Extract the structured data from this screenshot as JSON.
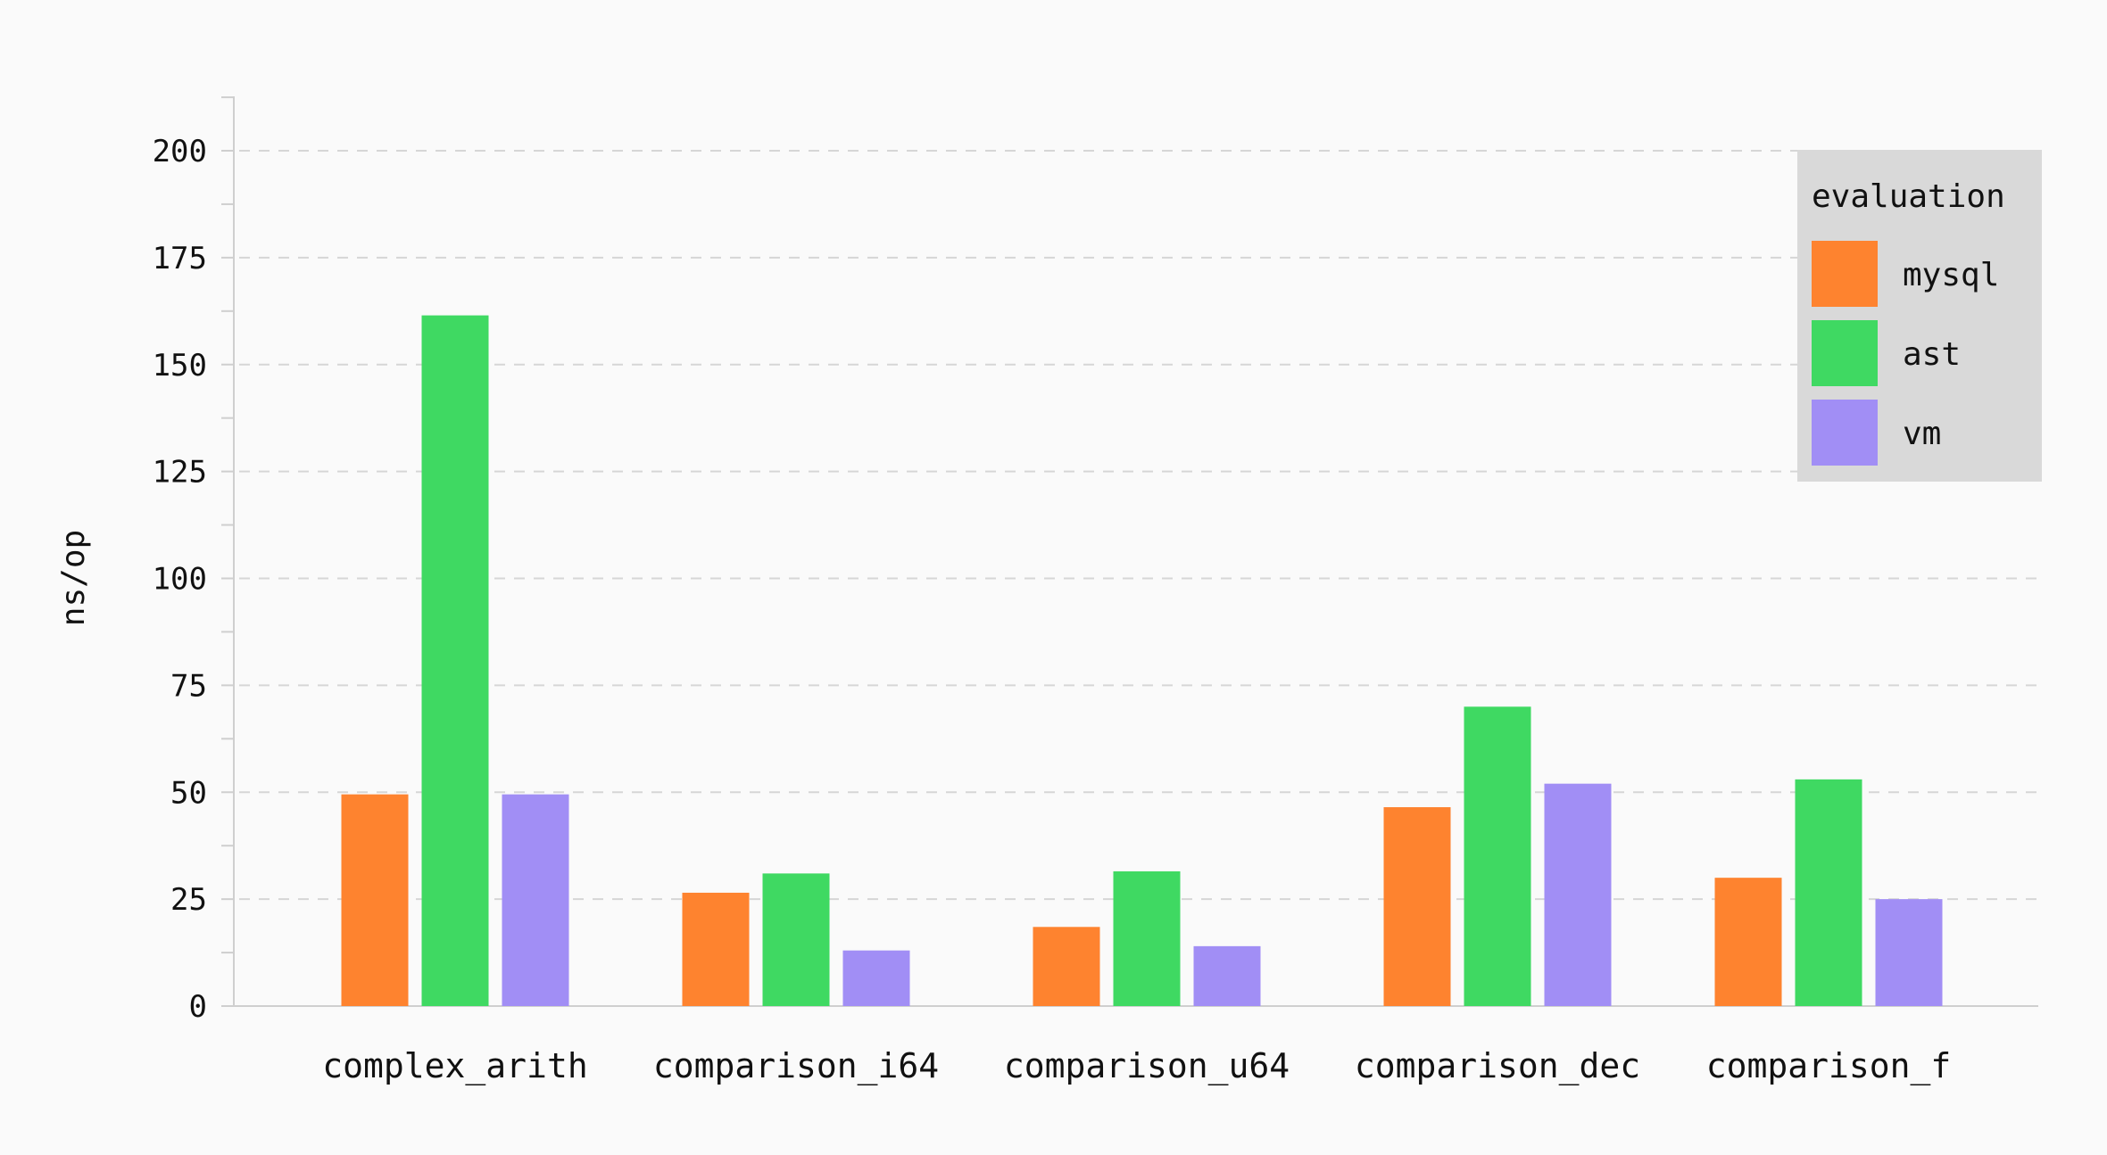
{
  "chart_data": {
    "type": "bar",
    "title": "",
    "xlabel": "",
    "ylabel": "ns/op",
    "ylim": [
      0,
      210
    ],
    "yticks": [
      0,
      25,
      50,
      75,
      100,
      125,
      150,
      175,
      200
    ],
    "yticks_labels": [
      "0",
      "25",
      "50",
      "75",
      "100",
      "125",
      "150",
      "175",
      "200"
    ],
    "grid": "horizontal dashed",
    "legend": {
      "title": "evaluation",
      "placement": "top-right"
    },
    "categories": [
      "complex_arith",
      "comparison_i64",
      "comparison_u64",
      "comparison_dec",
      "comparison_f"
    ],
    "series": [
      {
        "name": "mysql",
        "color": "#fe832f",
        "values": [
          49.5,
          26.5,
          18.5,
          46.5,
          30
        ]
      },
      {
        "name": "ast",
        "color": "#3fd962",
        "values": [
          161.5,
          31,
          31.5,
          70,
          53
        ]
      },
      {
        "name": "vm",
        "color": "#a18ef5",
        "values": [
          49.5,
          13,
          14,
          52,
          25
        ]
      }
    ]
  }
}
